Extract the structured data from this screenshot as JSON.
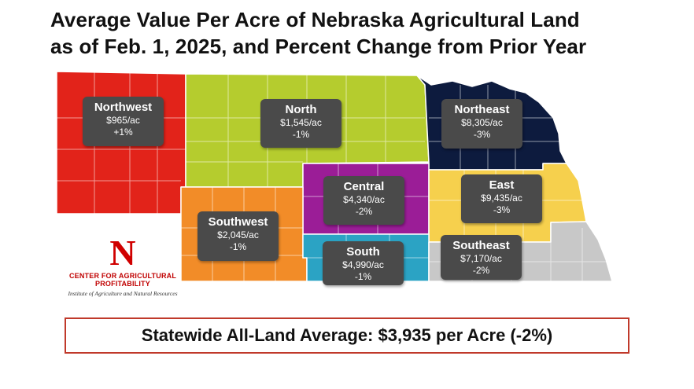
{
  "title_line1": "Average Value Per Acre of Nebraska Agricultural Land",
  "title_line2": "as of Feb. 1, 2025, and Percent Change from Prior Year",
  "regions": [
    {
      "name": "Northwest",
      "value": "$965/ac",
      "change": "+1%",
      "color": "#e2231a"
    },
    {
      "name": "North",
      "value": "$1,545/ac",
      "change": "-1%",
      "color": "#b5cc2e"
    },
    {
      "name": "Northeast",
      "value": "$8,305/ac",
      "change": "-3%",
      "color": "#0d1b3e"
    },
    {
      "name": "Central",
      "value": "$4,340/ac",
      "change": "-2%",
      "color": "#9b1d97"
    },
    {
      "name": "East",
      "value": "$9,435/ac",
      "change": "-3%",
      "color": "#f6d04d"
    },
    {
      "name": "Southwest",
      "value": "$2,045/ac",
      "change": "-1%",
      "color": "#f28c28"
    },
    {
      "name": "South",
      "value": "$4,990/ac",
      "change": "-1%",
      "color": "#2ba3c4"
    },
    {
      "name": "Southeast",
      "value": "$7,170/ac",
      "change": "-2%",
      "color": "#c8c8c8"
    }
  ],
  "logo": {
    "mark": "N",
    "name": "CENTER FOR AGRICULTURAL PROFITABILITY",
    "subtitle": "Institute of Agriculture and Natural Resources"
  },
  "statewide": "Statewide All-Land Average: $3,935 per Acre (-2%)"
}
